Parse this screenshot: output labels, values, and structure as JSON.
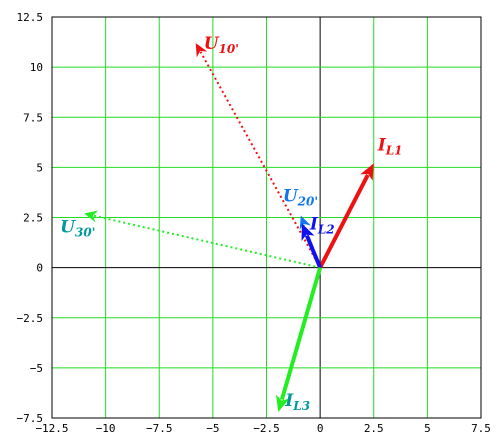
{
  "chart_data": {
    "type": "phasor-diagram",
    "xlim": [
      -12.5,
      7.5
    ],
    "ylim": [
      -7.5,
      12.5
    ],
    "grid": true,
    "colors": {
      "grid": "#22dd22",
      "background": "#ffffff",
      "axis_zero": "#000000"
    },
    "x_ticks": [
      {
        "value": -12.5,
        "label": "−12.5"
      },
      {
        "value": -10,
        "label": "−10"
      },
      {
        "value": -7.5,
        "label": "−7.5"
      },
      {
        "value": -5,
        "label": "−5"
      },
      {
        "value": -2.5,
        "label": "−2.5"
      },
      {
        "value": 0,
        "label": "0"
      },
      {
        "value": 2.5,
        "label": "2.5"
      },
      {
        "value": 5,
        "label": "5"
      },
      {
        "value": 7.5,
        "label": "7.5"
      }
    ],
    "y_ticks": [
      {
        "value": 12.5,
        "label": "12.5"
      },
      {
        "value": 10,
        "label": "10"
      },
      {
        "value": 7.5,
        "label": "7.5"
      },
      {
        "value": 5,
        "label": "5"
      },
      {
        "value": 2.5,
        "label": "2.5"
      },
      {
        "value": 0,
        "label": "0"
      },
      {
        "value": -2.5,
        "label": "−2.5"
      },
      {
        "value": -5,
        "label": "−5"
      },
      {
        "value": -7.5,
        "label": "−7.5"
      }
    ],
    "vectors": [
      {
        "key": "U10",
        "main": "U",
        "sub": "10'",
        "x": -5.8,
        "y": 11.2,
        "color": "#ee1111",
        "label_color": "#ee1111",
        "style": "dotted",
        "label_pos": "right"
      },
      {
        "key": "U20",
        "main": "U",
        "sub": "20'",
        "x": -0.9,
        "y": 2.6,
        "color": "#1177ee",
        "label_color": "#1177ee",
        "style": "dotted",
        "label_pos": "above"
      },
      {
        "key": "U30",
        "main": "U",
        "sub": "30'",
        "x": -11.0,
        "y": 2.7,
        "color": "#22ee22",
        "label_color": "#009999",
        "style": "dotted",
        "label_pos": "below-left"
      },
      {
        "key": "IL1",
        "main": "I",
        "sub": "L1",
        "x": 2.5,
        "y": 5.2,
        "color": "#ee1111",
        "label_color": "#ee1111",
        "style": "solid",
        "label_pos": "upper-right"
      },
      {
        "key": "IL2",
        "main": "I",
        "sub": "L2",
        "x": -0.85,
        "y": 2.2,
        "color": "#1111ee",
        "label_color": "#1111ee",
        "style": "solid",
        "label_pos": "right"
      },
      {
        "key": "IL3",
        "main": "I",
        "sub": "L3",
        "x": -1.95,
        "y": -7.2,
        "color": "#22ee22",
        "label_color": "#009999",
        "style": "solid",
        "label_pos": "below-right"
      }
    ]
  }
}
